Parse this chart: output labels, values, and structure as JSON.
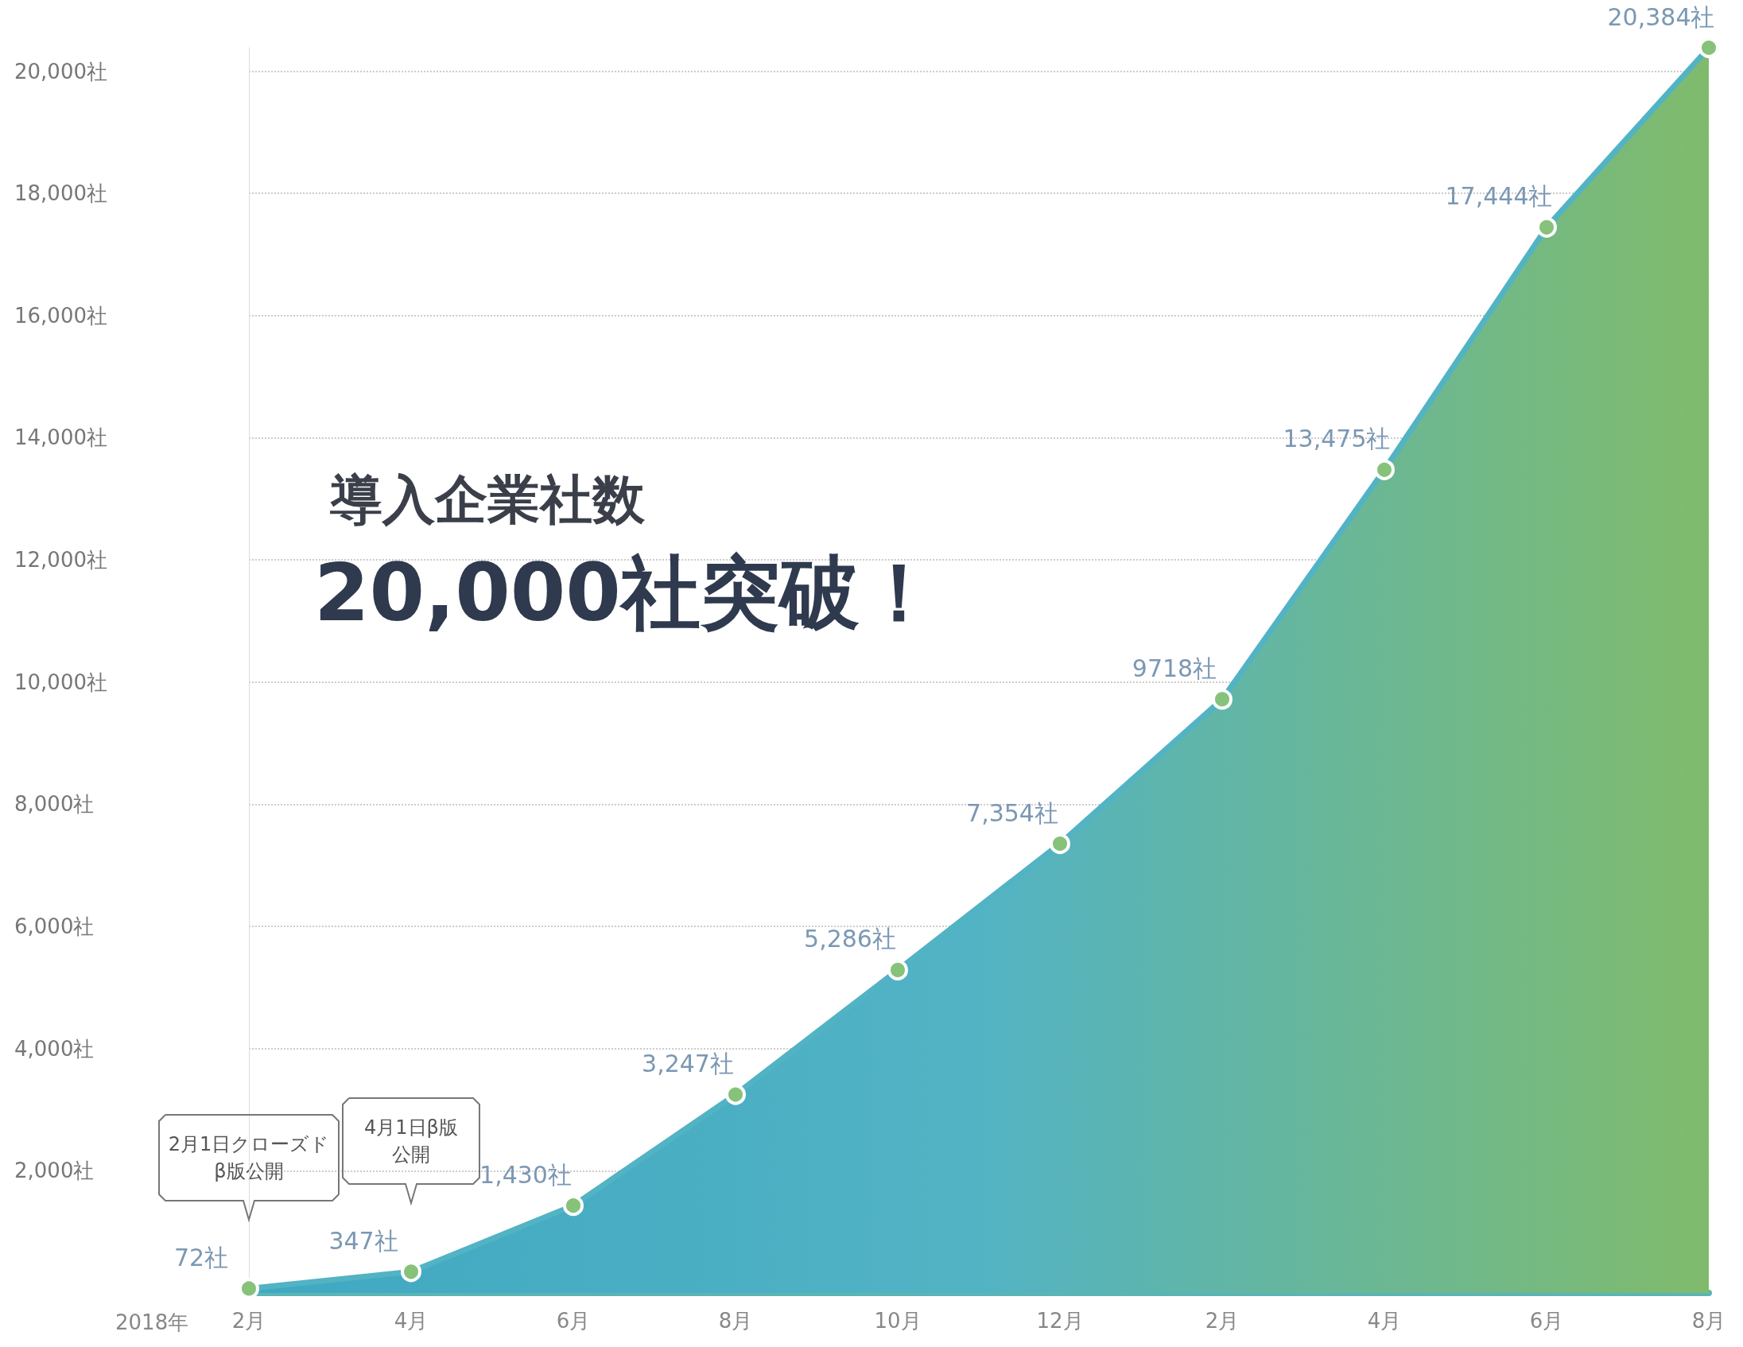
{
  "chart_data": {
    "type": "area",
    "title": "導入企業社数",
    "subtitle": "20,000社突破！",
    "categories": [
      "2月",
      "4月",
      "6月",
      "8月",
      "10月",
      "12月",
      "2月",
      "4月",
      "6月",
      "8月"
    ],
    "series": [
      {
        "color": "#52b3c4",
        "values": [
          72,
          347,
          1430,
          3247,
          5286,
          7354,
          9718,
          13475,
          17444,
          20384
        ],
        "value_labels": [
          "72社",
          "347社",
          "1,430社",
          "3,247社",
          "5,286社",
          "7,354社",
          "9718社",
          "13,475社",
          "17,444社",
          "20,384社"
        ]
      }
    ],
    "ylim": [
      0,
      20384
    ],
    "yticks": [
      {
        "value": 2000,
        "label": "2,000社"
      },
      {
        "value": 4000,
        "label": "4,000社"
      },
      {
        "value": 6000,
        "label": "6,000社"
      },
      {
        "value": 8000,
        "label": "8,000社"
      },
      {
        "value": 10000,
        "label": "10,000社"
      },
      {
        "value": 12000,
        "label": "12,000社"
      },
      {
        "value": 14000,
        "label": "14,000社"
      },
      {
        "value": 16000,
        "label": "16,000社"
      },
      {
        "value": 18000,
        "label": "18,000社"
      },
      {
        "value": 20000,
        "label": "20,000社"
      }
    ],
    "annotations": [
      "2018年",
      "2月1日クローズドβ版公開",
      "4月1日β版公開"
    ],
    "grid": "y",
    "marker": "circle"
  }
}
